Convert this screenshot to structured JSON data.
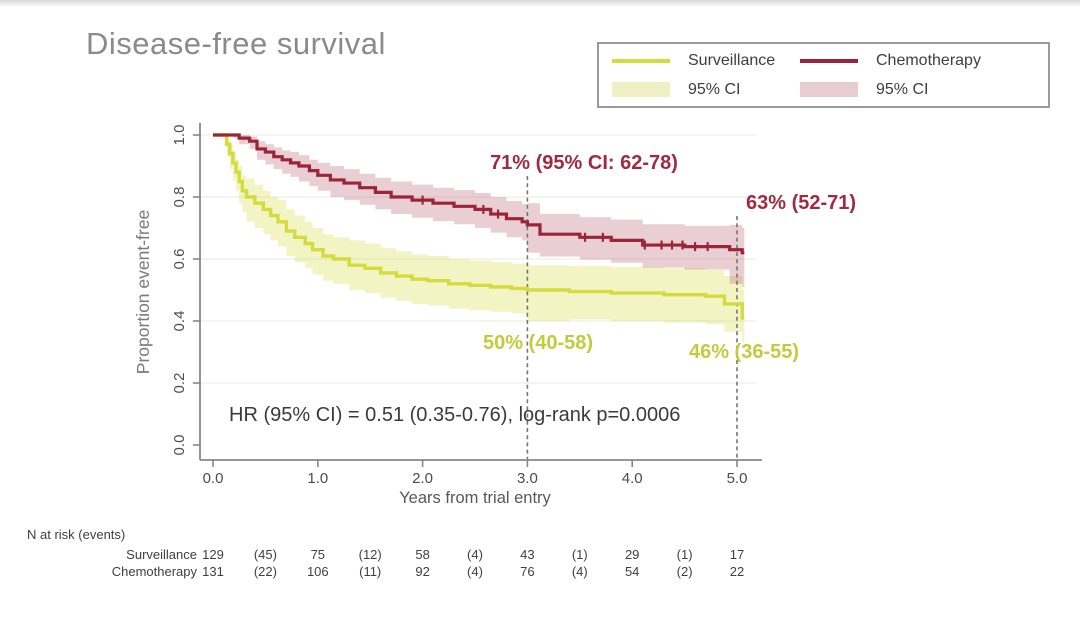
{
  "page": {
    "title": "Disease-free survival"
  },
  "legend": {
    "items": [
      {
        "label": "Surveillance",
        "swatch": "line",
        "color": "#d4db3d"
      },
      {
        "label": "95% CI",
        "swatch": "band",
        "color": "#eff1c4"
      },
      {
        "label": "Chemotherapy",
        "swatch": "line",
        "color": "#9c2438"
      },
      {
        "label": "95% CI",
        "swatch": "band",
        "color": "#e7ccd3"
      }
    ]
  },
  "chart_data": {
    "type": "line",
    "subtype": "kaplan-meier-step",
    "title": "Disease-free survival",
    "xlabel": "Years from trial entry",
    "ylabel": "Proportion event-free",
    "xlim": [
      0,
      5.3
    ],
    "ylim": [
      0,
      1
    ],
    "grid": "faint-horizontal",
    "legend_position": "top-right",
    "xticks": [
      {
        "t": 0,
        "label": "0.0"
      },
      {
        "t": 1,
        "label": "1.0"
      },
      {
        "t": 2,
        "label": "2.0"
      },
      {
        "t": 3,
        "label": "3.0"
      },
      {
        "t": 4,
        "label": "4.0"
      },
      {
        "t": 5,
        "label": "5.0"
      }
    ],
    "yticks": [
      {
        "v": 0.0,
        "label": "0.0"
      },
      {
        "v": 0.2,
        "label": "0.2"
      },
      {
        "v": 0.4,
        "label": "0.4"
      },
      {
        "v": 0.6,
        "label": "0.6"
      },
      {
        "v": 0.8,
        "label": "0.8"
      },
      {
        "v": 1.0,
        "label": "1.0"
      }
    ],
    "reference_times": [
      3,
      5
    ],
    "stats_text": "HR (95% CI) = 0.51 (0.35-0.76), log-rank p=0.0006",
    "annotations": [
      {
        "series": "Chemotherapy",
        "at_years": 3,
        "text": "71% (95% CI: 62-78)"
      },
      {
        "series": "Chemotherapy",
        "at_years": 5,
        "text": "63% (52-71)"
      },
      {
        "series": "Surveillance",
        "at_years": 3,
        "text": "50% (40-58)"
      },
      {
        "series": "Surveillance",
        "at_years": 5,
        "text": "46% (36-55)"
      }
    ],
    "series": [
      {
        "name": "Surveillance",
        "color": "#d4db3d",
        "ci_fill": "rgba(212,219,61,0.30)",
        "line_width": 3.4,
        "censor_times": [],
        "points": [
          [
            0.0,
            1.0,
            1.0,
            1.0
          ],
          [
            0.1,
            1.0,
            0.99,
            1.0
          ],
          [
            0.13,
            0.97,
            0.93,
            0.99
          ],
          [
            0.16,
            0.94,
            0.89,
            0.97
          ],
          [
            0.19,
            0.91,
            0.85,
            0.95
          ],
          [
            0.22,
            0.88,
            0.82,
            0.92
          ],
          [
            0.25,
            0.85,
            0.78,
            0.9
          ],
          [
            0.28,
            0.82,
            0.75,
            0.87
          ],
          [
            0.32,
            0.8,
            0.72,
            0.86
          ],
          [
            0.4,
            0.78,
            0.7,
            0.84
          ],
          [
            0.48,
            0.76,
            0.68,
            0.82
          ],
          [
            0.55,
            0.74,
            0.66,
            0.8
          ],
          [
            0.62,
            0.72,
            0.64,
            0.79
          ],
          [
            0.7,
            0.69,
            0.61,
            0.76
          ],
          [
            0.78,
            0.67,
            0.59,
            0.74
          ],
          [
            0.88,
            0.65,
            0.57,
            0.72
          ],
          [
            0.95,
            0.63,
            0.55,
            0.7
          ],
          [
            1.05,
            0.61,
            0.53,
            0.68
          ],
          [
            1.15,
            0.6,
            0.52,
            0.67
          ],
          [
            1.3,
            0.58,
            0.5,
            0.66
          ],
          [
            1.45,
            0.57,
            0.49,
            0.65
          ],
          [
            1.6,
            0.555,
            0.475,
            0.635
          ],
          [
            1.75,
            0.545,
            0.465,
            0.625
          ],
          [
            1.9,
            0.535,
            0.455,
            0.615
          ],
          [
            2.05,
            0.53,
            0.45,
            0.61
          ],
          [
            2.25,
            0.52,
            0.44,
            0.6
          ],
          [
            2.45,
            0.515,
            0.435,
            0.595
          ],
          [
            2.65,
            0.51,
            0.43,
            0.59
          ],
          [
            2.85,
            0.505,
            0.425,
            0.585
          ],
          [
            3.0,
            0.5,
            0.4,
            0.58
          ],
          [
            3.4,
            0.495,
            0.405,
            0.578
          ],
          [
            3.8,
            0.49,
            0.4,
            0.575
          ],
          [
            4.3,
            0.485,
            0.395,
            0.57
          ],
          [
            4.7,
            0.48,
            0.39,
            0.565
          ],
          [
            4.88,
            0.455,
            0.365,
            0.545
          ],
          [
            5.05,
            0.41,
            0.33,
            0.5
          ]
        ]
      },
      {
        "name": "Chemotherapy",
        "color": "#9c2438",
        "ci_fill": "rgba(156,36,56,0.22)",
        "line_width": 3.2,
        "censor_times": [
          2.0,
          2.58,
          2.72,
          3.55,
          3.72,
          4.12,
          4.28,
          4.38,
          4.48,
          4.6,
          4.72
        ],
        "points": [
          [
            0.0,
            1.0,
            1.0,
            1.0
          ],
          [
            0.2,
            1.0,
            0.99,
            1.0
          ],
          [
            0.25,
            0.99,
            0.97,
            1.0
          ],
          [
            0.35,
            0.98,
            0.955,
            0.995
          ],
          [
            0.42,
            0.955,
            0.92,
            0.98
          ],
          [
            0.5,
            0.945,
            0.905,
            0.97
          ],
          [
            0.58,
            0.93,
            0.89,
            0.96
          ],
          [
            0.66,
            0.92,
            0.875,
            0.95
          ],
          [
            0.74,
            0.91,
            0.865,
            0.945
          ],
          [
            0.82,
            0.9,
            0.85,
            0.935
          ],
          [
            0.92,
            0.885,
            0.835,
            0.92
          ],
          [
            1.0,
            0.87,
            0.82,
            0.91
          ],
          [
            1.12,
            0.855,
            0.8,
            0.9
          ],
          [
            1.25,
            0.845,
            0.79,
            0.89
          ],
          [
            1.4,
            0.83,
            0.775,
            0.875
          ],
          [
            1.55,
            0.815,
            0.76,
            0.862
          ],
          [
            1.7,
            0.8,
            0.745,
            0.85
          ],
          [
            1.9,
            0.79,
            0.733,
            0.84
          ],
          [
            2.1,
            0.78,
            0.722,
            0.83
          ],
          [
            2.3,
            0.77,
            0.712,
            0.822
          ],
          [
            2.5,
            0.76,
            0.7,
            0.813
          ],
          [
            2.65,
            0.745,
            0.685,
            0.8
          ],
          [
            2.8,
            0.73,
            0.67,
            0.787
          ],
          [
            2.95,
            0.72,
            0.66,
            0.777
          ],
          [
            3.0,
            0.71,
            0.62,
            0.78
          ],
          [
            3.12,
            0.68,
            0.608,
            0.745
          ],
          [
            3.5,
            0.67,
            0.598,
            0.735
          ],
          [
            3.8,
            0.66,
            0.588,
            0.727
          ],
          [
            4.1,
            0.645,
            0.572,
            0.712
          ],
          [
            4.5,
            0.64,
            0.566,
            0.707
          ],
          [
            4.93,
            0.63,
            0.52,
            0.71
          ],
          [
            5.05,
            0.62,
            0.51,
            0.7
          ]
        ]
      }
    ]
  },
  "risk_table": {
    "header": "N at risk (events)",
    "rows": [
      {
        "label": "Surveillance",
        "values": [
          "129",
          "(45)",
          "75",
          "(12)",
          "58",
          "(4)",
          "43",
          "(1)",
          "29",
          "(1)",
          "17"
        ]
      },
      {
        "label": "Chemotherapy",
        "values": [
          "131",
          "(22)",
          "106",
          "(11)",
          "92",
          "(4)",
          "76",
          "(4)",
          "54",
          "(2)",
          "22"
        ]
      }
    ]
  }
}
